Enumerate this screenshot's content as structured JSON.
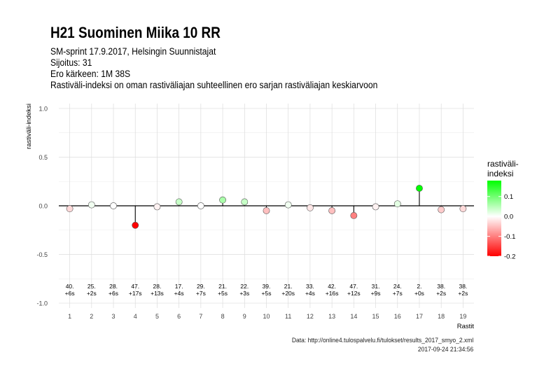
{
  "title": "H21 Suominen Miika 10 RR",
  "subtitle_lines": [
    "SM-sprint 17.9.2017, Helsingin Suunnistajat",
    "Sijoitus: 31",
    "Ero kärkeen: 1M 38S",
    "Rastiväli-indeksi on oman rastiväliajan suhteellinen ero sarjan rastiväliajan keskiarvoon"
  ],
  "caption": {
    "source": "Data: http://online4.tulospalvelu.fi/tulokset/results_2017_smyo_2.xml",
    "timestamp": "2017-09-24 21:34:56"
  },
  "chart_data": {
    "type": "scatter",
    "xlabel": "Rastit",
    "ylabel": "rastiväli-indeksi",
    "ylim": [
      -1.05,
      1.05
    ],
    "yticks": [
      1.0,
      0.5,
      0.0,
      -0.5,
      -1.0
    ],
    "ytick_labels": [
      "1.0",
      "0.5",
      "0.0",
      "-0.5",
      "-1.0"
    ],
    "grid": true,
    "x": [
      1,
      2,
      3,
      4,
      5,
      6,
      7,
      8,
      9,
      10,
      11,
      12,
      13,
      14,
      15,
      16,
      17,
      18,
      19
    ],
    "values": [
      -0.03,
      0.01,
      0.0,
      -0.2,
      -0.01,
      0.04,
      0.0,
      0.06,
      0.04,
      -0.05,
      0.01,
      -0.02,
      -0.05,
      -0.1,
      -0.01,
      0.02,
      0.18,
      -0.04,
      -0.03
    ],
    "rank_labels": [
      "40.",
      "25.",
      "28.",
      "47.",
      "28.",
      "17.",
      "29.",
      "21.",
      "22.",
      "39.",
      "21.",
      "33.",
      "42.",
      "47.",
      "31.",
      "24.",
      "2.",
      "38.",
      "38."
    ],
    "diff_labels": [
      "+6s",
      "+2s",
      "+6s",
      "+17s",
      "+13s",
      "+4s",
      "+7s",
      "+5s",
      "+3s",
      "+5s",
      "+20s",
      "+4s",
      "+16s",
      "+12s",
      "+9s",
      "+7s",
      "+0s",
      "+2s",
      "+2s"
    ],
    "legend": {
      "title_lines": [
        "rastiväli-",
        "indeksi"
      ],
      "placement": "right",
      "range": [
        -0.2,
        0.18
      ],
      "ticks": [
        0.1,
        0.0,
        -0.1,
        -0.2
      ],
      "tick_labels": [
        "0.1",
        "0.0",
        "-0.1",
        "-0.2"
      ],
      "low_color": "#ff0000",
      "mid_color": "#ffffff",
      "high_color": "#00ff00"
    }
  }
}
